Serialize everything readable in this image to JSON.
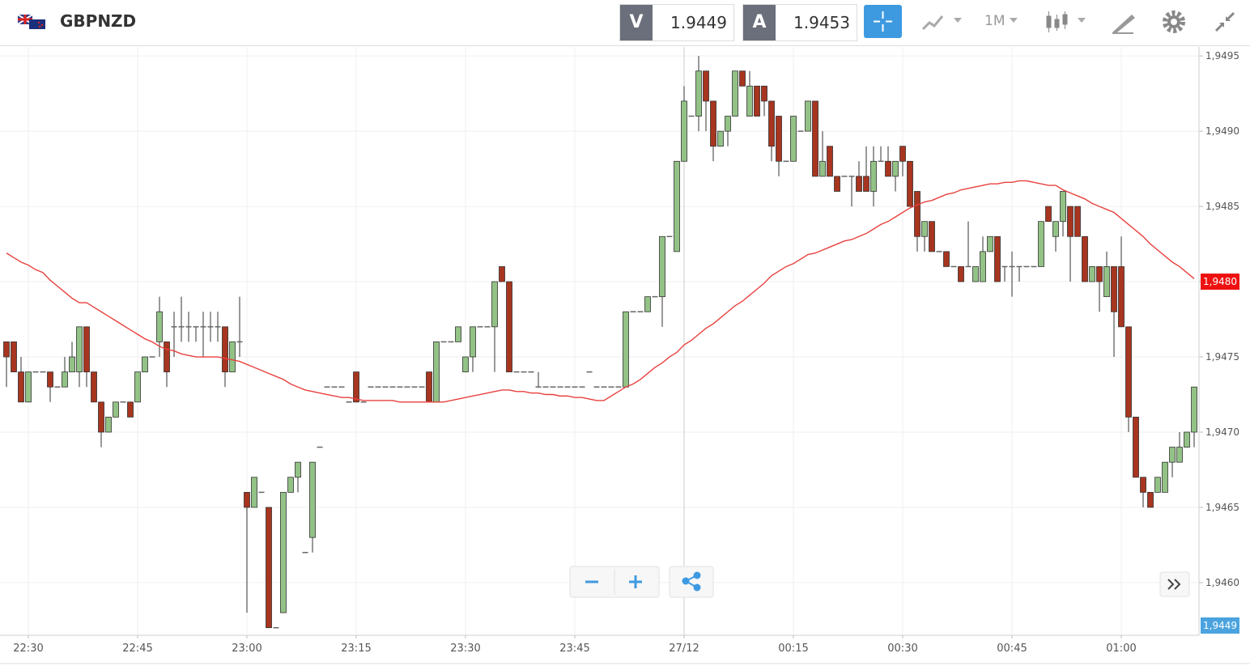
{
  "toolbar": {
    "symbol": "GBPNZD",
    "bid_label": "V",
    "bid": 1.9449,
    "ask_label": "A",
    "ask": 1.9453,
    "timeframe": "1M"
  },
  "chart_data": {
    "type": "candlestick",
    "categories": [
      null,
      null,
      null,
      "22:30",
      null,
      null,
      null,
      null,
      null,
      null,
      null,
      null,
      null,
      null,
      null,
      null,
      null,
      null,
      "22:45",
      null,
      null,
      null,
      null,
      null,
      null,
      null,
      null,
      null,
      null,
      null,
      null,
      null,
      null,
      "23:00",
      null,
      null,
      null,
      null,
      null,
      null,
      null,
      null,
      null,
      null,
      null,
      null,
      null,
      null,
      "23:15",
      null,
      null,
      null,
      null,
      null,
      null,
      null,
      null,
      null,
      null,
      null,
      null,
      null,
      null,
      "23:30",
      null,
      null,
      null,
      null,
      null,
      null,
      null,
      null,
      null,
      null,
      null,
      null,
      null,
      null,
      "23:45",
      null,
      null,
      null,
      null,
      null,
      null,
      null,
      null,
      null,
      null,
      null,
      null,
      null,
      null,
      "27/12",
      null,
      null,
      null,
      null,
      null,
      null,
      null,
      null,
      null,
      null,
      null,
      null,
      null,
      null,
      "00:15",
      null,
      null,
      null,
      null,
      null,
      null,
      null,
      null,
      null,
      null,
      null,
      null,
      null,
      null,
      "00:30",
      null,
      null,
      null,
      null,
      null,
      null,
      null,
      null,
      null,
      null,
      null,
      null,
      null,
      null,
      "00:45",
      null,
      null,
      null,
      null,
      null,
      null,
      null,
      null,
      null,
      null,
      null,
      null,
      null,
      null,
      "01:00",
      null,
      null,
      null,
      null,
      null,
      null,
      null,
      null,
      null,
      null
    ],
    "ohlc": [
      [
        1.9476,
        1.9476,
        1.9473,
        1.9475
      ],
      [
        1.9476,
        1.9476,
        1.9474,
        1.9474
      ],
      [
        1.9474,
        1.9475,
        1.9472,
        1.9472
      ],
      [
        1.9472,
        1.9474,
        1.9472,
        1.9474
      ],
      [
        1.9474,
        1.9474,
        1.9474,
        1.9474
      ],
      [
        1.9474,
        1.9474,
        1.9474,
        1.9474
      ],
      [
        1.9474,
        1.9474,
        1.9472,
        1.9473
      ],
      [
        1.9473,
        1.9473,
        1.9473,
        1.9473
      ],
      [
        1.9473,
        1.9475,
        1.9473,
        1.9474
      ],
      [
        1.9474,
        1.9476,
        1.9474,
        1.9475
      ],
      [
        1.9474,
        1.9477,
        1.9473,
        1.9477
      ],
      [
        1.9477,
        1.9477,
        1.9473,
        1.9474
      ],
      [
        1.9474,
        1.9474,
        1.9472,
        1.9472
      ],
      [
        1.9472,
        1.9472,
        1.9469,
        1.947
      ],
      [
        1.947,
        1.9471,
        1.947,
        1.9471
      ],
      [
        1.9471,
        1.9472,
        1.9471,
        1.9472
      ],
      [
        1.9472,
        1.9472,
        1.9472,
        1.9472
      ],
      [
        1.9472,
        1.9472,
        1.9471,
        1.9471
      ],
      [
        1.9472,
        1.9474,
        1.9472,
        1.9474
      ],
      [
        1.9474,
        1.9475,
        1.9474,
        1.9475
      ],
      [
        1.9475,
        1.9475,
        1.9475,
        1.9475
      ],
      [
        1.9476,
        1.9479,
        1.9475,
        1.9478
      ],
      [
        1.9476,
        1.9476,
        1.9473,
        1.9474
      ],
      [
        1.9477,
        1.9478,
        1.9475,
        1.9477
      ],
      [
        1.9477,
        1.9479,
        1.9476,
        1.9477
      ],
      [
        1.9477,
        1.9478,
        1.9476,
        1.9477
      ],
      [
        1.9477,
        1.9477,
        1.9476,
        1.9477
      ],
      [
        1.9477,
        1.9478,
        1.9475,
        1.9477
      ],
      [
        1.9477,
        1.9478,
        1.9476,
        1.9477
      ],
      [
        1.9477,
        1.9478,
        1.9476,
        1.9477
      ],
      [
        1.9477,
        1.9477,
        1.9473,
        1.9474
      ],
      [
        1.9474,
        1.9476,
        1.9474,
        1.9476
      ],
      [
        1.9476,
        1.9479,
        1.9475,
        1.9476
      ],
      [
        1.9466,
        1.9466,
        1.9458,
        1.9465
      ],
      [
        1.9465,
        1.9467,
        1.9465,
        1.9467
      ],
      [
        1.9466,
        1.9466,
        1.9466,
        1.9466
      ],
      [
        1.9465,
        1.9465,
        1.9457,
        1.9457
      ],
      [
        1.9457,
        1.9457,
        1.9457,
        1.9457
      ],
      [
        1.9458,
        1.9466,
        1.9458,
        1.9466
      ],
      [
        1.9466,
        1.9467,
        1.9466,
        1.9467
      ],
      [
        1.9467,
        1.9468,
        1.9466,
        1.9468
      ],
      [
        1.9462,
        1.9462,
        1.9462,
        1.9462
      ],
      [
        1.9463,
        1.9468,
        1.9462,
        1.9468
      ],
      [
        1.9469,
        1.9469,
        1.9469,
        1.9469
      ],
      [
        1.9473,
        1.9473,
        1.9473,
        1.9473
      ],
      [
        1.9473,
        1.9473,
        1.9473,
        1.9473
      ],
      [
        1.9473,
        1.9473,
        1.9473,
        1.9473
      ],
      [
        1.9472,
        1.9472,
        1.9472,
        1.9472
      ],
      [
        1.9474,
        1.9474,
        1.9472,
        1.9472
      ],
      [
        1.9472,
        1.9472,
        1.9472,
        1.9472
      ],
      [
        1.9473,
        1.9473,
        1.9473,
        1.9473
      ],
      [
        1.9473,
        1.9473,
        1.9473,
        1.9473
      ],
      [
        1.9473,
        1.9473,
        1.9473,
        1.9473
      ],
      [
        1.9473,
        1.9473,
        1.9473,
        1.9473
      ],
      [
        1.9473,
        1.9473,
        1.9473,
        1.9473
      ],
      [
        1.9473,
        1.9473,
        1.9473,
        1.9473
      ],
      [
        1.9473,
        1.9473,
        1.9473,
        1.9473
      ],
      [
        1.9473,
        1.9473,
        1.9473,
        1.9473
      ],
      [
        1.9474,
        1.9474,
        1.9472,
        1.9472
      ],
      [
        1.9472,
        1.9476,
        1.9472,
        1.9476
      ],
      [
        1.9476,
        1.9476,
        1.9476,
        1.9476
      ],
      [
        1.9476,
        1.9476,
        1.9476,
        1.9476
      ],
      [
        1.9476,
        1.9477,
        1.9476,
        1.9477
      ],
      [
        1.9474,
        1.9475,
        1.9474,
        1.9475
      ],
      [
        1.9475,
        1.9477,
        1.9474,
        1.9477
      ],
      [
        1.9477,
        1.9477,
        1.9477,
        1.9477
      ],
      [
        1.9477,
        1.9477,
        1.9477,
        1.9477
      ],
      [
        1.9477,
        1.948,
        1.9474,
        1.948
      ],
      [
        1.9481,
        1.9481,
        1.948,
        1.948
      ],
      [
        1.948,
        1.948,
        1.9474,
        1.9474
      ],
      [
        1.9474,
        1.9474,
        1.9474,
        1.9474
      ],
      [
        1.9474,
        1.9474,
        1.9474,
        1.9474
      ],
      [
        1.9474,
        1.9474,
        1.9474,
        1.9474
      ],
      [
        1.9473,
        1.9474,
        1.9473,
        1.9473
      ],
      [
        1.9473,
        1.9473,
        1.9473,
        1.9473
      ],
      [
        1.9473,
        1.9473,
        1.9473,
        1.9473
      ],
      [
        1.9473,
        1.9473,
        1.9473,
        1.9473
      ],
      [
        1.9473,
        1.9473,
        1.9473,
        1.9473
      ],
      [
        1.9473,
        1.9473,
        1.9473,
        1.9473
      ],
      [
        1.9473,
        1.9473,
        1.9473,
        1.9473
      ],
      [
        1.9474,
        1.9474,
        1.9474,
        1.9474
      ],
      [
        1.9473,
        1.9473,
        1.9473,
        1.9473
      ],
      [
        1.9473,
        1.9473,
        1.9473,
        1.9473
      ],
      [
        1.9473,
        1.9473,
        1.9473,
        1.9473
      ],
      [
        1.9473,
        1.9473,
        1.9473,
        1.9473
      ],
      [
        1.9473,
        1.9478,
        1.9473,
        1.9478
      ],
      [
        1.9478,
        1.9478,
        1.9478,
        1.9478
      ],
      [
        1.9478,
        1.9478,
        1.9478,
        1.9478
      ],
      [
        1.9478,
        1.9479,
        1.9478,
        1.9479
      ],
      [
        1.9479,
        1.9479,
        1.9479,
        1.9479
      ],
      [
        1.9479,
        1.9483,
        1.9477,
        1.9483
      ],
      [
        1.9483,
        1.9483,
        1.9483,
        1.9483
      ],
      [
        1.9482,
        1.9488,
        1.9482,
        1.9488
      ],
      [
        1.9488,
        1.9493,
        1.9488,
        1.9492
      ],
      [
        1.9491,
        1.9491,
        1.9491,
        1.9491
      ],
      [
        1.9491,
        1.9495,
        1.949,
        1.9494
      ],
      [
        1.9494,
        1.9494,
        1.949,
        1.9492
      ],
      [
        1.9492,
        1.9492,
        1.9488,
        1.9489
      ],
      [
        1.9489,
        1.949,
        1.9489,
        1.949
      ],
      [
        1.949,
        1.9491,
        1.9489,
        1.9491
      ],
      [
        1.9491,
        1.9494,
        1.9491,
        1.9494
      ],
      [
        1.9494,
        1.9494,
        1.9493,
        1.9493
      ],
      [
        1.9491,
        1.9494,
        1.9491,
        1.9493
      ],
      [
        1.9493,
        1.9493,
        1.9491,
        1.9491
      ],
      [
        1.9493,
        1.9493,
        1.9491,
        1.9492
      ],
      [
        1.9492,
        1.9492,
        1.9488,
        1.9489
      ],
      [
        1.9491,
        1.9491,
        1.9487,
        1.9488
      ],
      [
        1.9488,
        1.9488,
        1.9488,
        1.9488
      ],
      [
        1.9488,
        1.9491,
        1.9488,
        1.9491
      ],
      [
        1.949,
        1.949,
        1.949,
        1.949
      ],
      [
        1.949,
        1.9492,
        1.949,
        1.9492
      ],
      [
        1.9492,
        1.9492,
        1.9487,
        1.9487
      ],
      [
        1.9487,
        1.949,
        1.9487,
        1.9488
      ],
      [
        1.9489,
        1.9489,
        1.9487,
        1.9487
      ],
      [
        1.9487,
        1.9487,
        1.9486,
        1.9486
      ],
      [
        1.9487,
        1.9487,
        1.9487,
        1.9487
      ],
      [
        1.9487,
        1.9487,
        1.9485,
        1.9487
      ],
      [
        1.9487,
        1.9488,
        1.9486,
        1.9486
      ],
      [
        1.9487,
        1.9489,
        1.9486,
        1.9486
      ],
      [
        1.9486,
        1.9489,
        1.9485,
        1.9488
      ],
      [
        1.9488,
        1.9489,
        1.9488,
        1.9488
      ],
      [
        1.9488,
        1.9489,
        1.9487,
        1.9487
      ],
      [
        1.9487,
        1.9488,
        1.9486,
        1.9488
      ],
      [
        1.9489,
        1.9489,
        1.9487,
        1.9488
      ],
      [
        1.9488,
        1.9488,
        1.9485,
        1.9485
      ],
      [
        1.9486,
        1.9486,
        1.9482,
        1.9483
      ],
      [
        1.9483,
        1.9484,
        1.9482,
        1.9484
      ],
      [
        1.9484,
        1.9484,
        1.9482,
        1.9482
      ],
      [
        1.9482,
        1.9482,
        1.9482,
        1.9482
      ],
      [
        1.9482,
        1.9482,
        1.9481,
        1.9481
      ],
      [
        1.9481,
        1.9481,
        1.9481,
        1.9481
      ],
      [
        1.9481,
        1.9481,
        1.948,
        1.948
      ],
      [
        1.9481,
        1.9484,
        1.9481,
        1.9481
      ],
      [
        1.948,
        1.9481,
        1.948,
        1.9481
      ],
      [
        1.948,
        1.9483,
        1.948,
        1.9482
      ],
      [
        1.9482,
        1.9483,
        1.9482,
        1.9483
      ],
      [
        1.9483,
        1.9483,
        1.948,
        1.948
      ],
      [
        1.9481,
        1.9481,
        1.948,
        1.9481
      ],
      [
        1.9481,
        1.9482,
        1.9479,
        1.9481
      ],
      [
        1.9481,
        1.9481,
        1.948,
        1.9481
      ],
      [
        1.9481,
        1.9481,
        1.9481,
        1.9481
      ],
      [
        1.9481,
        1.9481,
        1.9481,
        1.9481
      ],
      [
        1.9481,
        1.9484,
        1.9481,
        1.9484
      ],
      [
        1.9485,
        1.9485,
        1.9484,
        1.9484
      ],
      [
        1.9483,
        1.9484,
        1.9482,
        1.9484
      ],
      [
        1.9484,
        1.9486,
        1.9483,
        1.9486
      ],
      [
        1.9485,
        1.9485,
        1.948,
        1.9483
      ],
      [
        1.9485,
        1.9485,
        1.9483,
        1.9483
      ],
      [
        1.9483,
        1.9483,
        1.948,
        1.948
      ],
      [
        1.948,
        1.9481,
        1.948,
        1.9481
      ],
      [
        1.9481,
        1.9481,
        1.9478,
        1.948
      ],
      [
        1.9479,
        1.9482,
        1.9479,
        1.9481
      ],
      [
        1.9481,
        1.9481,
        1.9475,
        1.9478
      ],
      [
        1.9481,
        1.9483,
        1.9477,
        1.9477
      ],
      [
        1.9477,
        1.9477,
        1.947,
        1.9471
      ],
      [
        1.9471,
        1.9471,
        1.9467,
        1.9467
      ],
      [
        1.9467,
        1.9467,
        1.9465,
        1.9466
      ],
      [
        1.9466,
        1.9466,
        1.9465,
        1.9465
      ],
      [
        1.9466,
        1.9467,
        1.9466,
        1.9467
      ],
      [
        1.9466,
        1.9468,
        1.9466,
        1.9468
      ],
      [
        1.9468,
        1.9469,
        1.9467,
        1.9469
      ],
      [
        1.9468,
        1.947,
        1.9468,
        1.9469
      ],
      [
        1.9469,
        1.947,
        1.9469,
        1.947
      ],
      [
        1.947,
        1.9473,
        1.9469,
        1.9473
      ]
    ],
    "moving_average": [
      1.94819,
      1.94816,
      1.94813,
      1.94811,
      1.94808,
      1.94806,
      1.94801,
      1.94797,
      1.94793,
      1.94789,
      1.94786,
      1.94786,
      1.94783,
      1.9478,
      1.94777,
      1.94774,
      1.94771,
      1.94768,
      1.94765,
      1.94762,
      1.9476,
      1.94757,
      1.94755,
      1.94754,
      1.94752,
      1.94751,
      1.9475,
      1.9475,
      1.9475,
      1.9475,
      1.94749,
      1.94748,
      1.94747,
      1.94745,
      1.94743,
      1.94741,
      1.94739,
      1.94737,
      1.94735,
      1.94732,
      1.9473,
      1.94728,
      1.94727,
      1.94726,
      1.94725,
      1.94724,
      1.94723,
      1.94723,
      1.94722,
      1.94721,
      1.94721,
      1.94721,
      1.94721,
      1.94721,
      1.9472,
      1.9472,
      1.9472,
      1.9472,
      1.9472,
      1.9472,
      1.9472,
      1.94721,
      1.94722,
      1.94723,
      1.94724,
      1.94725,
      1.94726,
      1.94727,
      1.94728,
      1.94728,
      1.94727,
      1.94727,
      1.94726,
      1.94726,
      1.94725,
      1.94725,
      1.94724,
      1.94724,
      1.94723,
      1.94723,
      1.94722,
      1.94721,
      1.94721,
      1.94724,
      1.94727,
      1.9473,
      1.94732,
      1.94735,
      1.94739,
      1.94743,
      1.94746,
      1.9475,
      1.94753,
      1.94758,
      1.94761,
      1.94765,
      1.94769,
      1.94772,
      1.94776,
      1.9478,
      1.94784,
      1.94787,
      1.94791,
      1.94795,
      1.94799,
      1.94804,
      1.94807,
      1.9481,
      1.94812,
      1.94815,
      1.94818,
      1.94819,
      1.94821,
      1.94823,
      1.94825,
      1.94827,
      1.94828,
      1.9483,
      1.94832,
      1.94835,
      1.94838,
      1.9484,
      1.94843,
      1.94846,
      1.94849,
      1.94851,
      1.94853,
      1.94854,
      1.94856,
      1.94858,
      1.94859,
      1.94861,
      1.94862,
      1.94863,
      1.94864,
      1.94865,
      1.94865,
      1.94866,
      1.94866,
      1.94867,
      1.94867,
      1.94866,
      1.94865,
      1.94864,
      1.94864,
      1.94861,
      1.94859,
      1.94857,
      1.94855,
      1.94852,
      1.9485,
      1.94848,
      1.94846,
      1.94842,
      1.94838,
      1.94834,
      1.9483,
      1.94825,
      1.94821,
      1.94817,
      1.94813,
      1.9481,
      1.94806,
      1.94802
    ],
    "up_color": "#93c286",
    "down_color": "#a7351f",
    "doji_color": "#666",
    "ma_color": "#e8413e",
    "ylim": [
      1.94565,
      1.94956
    ],
    "yticks": [
      {
        "value": 1.946,
        "label": "1,9460"
      },
      {
        "value": 1.9465,
        "label": "1,9465"
      },
      {
        "value": 1.947,
        "label": "1,9470"
      },
      {
        "value": 1.9475,
        "label": "1,9475"
      },
      {
        "value": 1.948,
        "label": "1,9480"
      },
      {
        "value": 1.9485,
        "label": "1,9485"
      },
      {
        "value": 1.949,
        "label": "1,9490"
      },
      {
        "value": 1.9495,
        "label": "1,9495"
      }
    ],
    "price_tags": [
      {
        "value": 1.948,
        "label": "1,9480",
        "color": "#ee1111"
      },
      {
        "value": 1.9449,
        "label": "1,9449",
        "color": "#4aa3df"
      }
    ],
    "grid": true
  }
}
